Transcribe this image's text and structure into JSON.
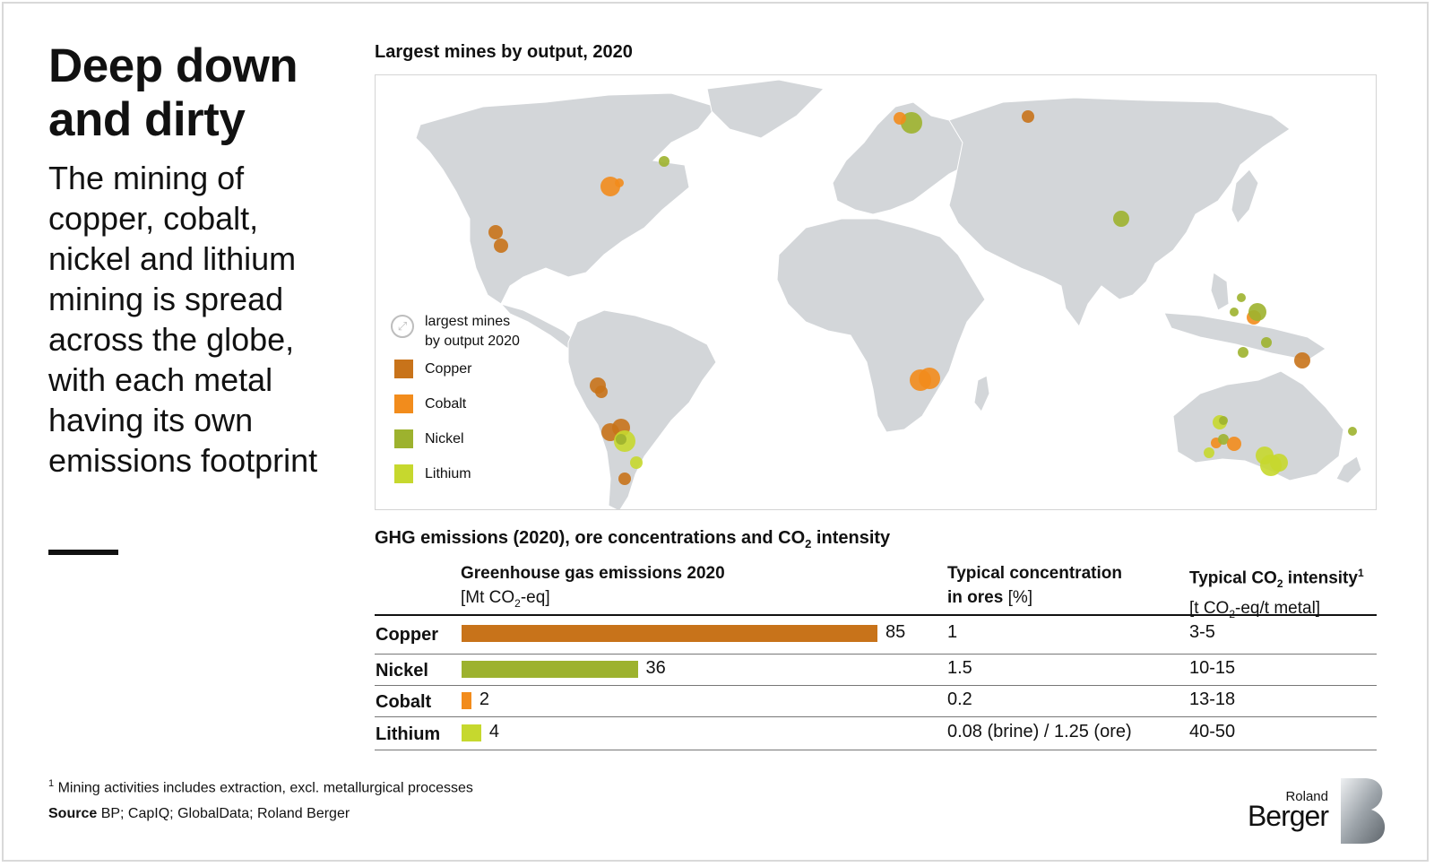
{
  "headline": "Deep down and dirty",
  "subhead": "The mining of copper, cobalt, nickel and lithium mining is spread across the globe, with each metal having its own emissions footprint",
  "colors": {
    "copper": "#c8731a",
    "cobalt": "#f28c1c",
    "nickel": "#9db22e",
    "lithium": "#c6d82e",
    "land": "#d3d6d9"
  },
  "map": {
    "title": "Largest mines by output, 2020",
    "legend": {
      "size_label_line1": "largest mines",
      "size_label_line2": "by output 2020",
      "items": [
        {
          "label": "Copper",
          "color": "#c8731a"
        },
        {
          "label": "Cobalt",
          "color": "#f28c1c"
        },
        {
          "label": "Nickel",
          "color": "#9db22e"
        },
        {
          "label": "Lithium",
          "color": "#c6d82e"
        }
      ]
    }
  },
  "table": {
    "title_pre": "GHG emissions (2020), ore concentrations and CO",
    "title_sub": "2",
    "title_post": " intensity",
    "col1": {
      "title": "Greenhouse gas emissions 2020",
      "unit_pre": "[Mt CO",
      "unit_sub": "2",
      "unit_post": "-eq]"
    },
    "col2": {
      "title_line1": "Typical concentration",
      "title_line2": "in ores",
      "unit": " [%]"
    },
    "col3": {
      "title_pre": "Typical CO",
      "title_sub": "2",
      "title_post": " intensity",
      "title_sup": "1",
      "unit_pre": "[t CO",
      "unit_sub": "2",
      "unit_post": "-eq/t metal]"
    },
    "rows": [
      {
        "metal": "Copper",
        "value_label": "85",
        "concentration": "1",
        "intensity": "3-5"
      },
      {
        "metal": "Nickel",
        "value_label": "36",
        "concentration": "1.5",
        "intensity": "10-15"
      },
      {
        "metal": "Cobalt",
        "value_label": "2",
        "concentration": "0.2",
        "intensity": "13-18"
      },
      {
        "metal": "Lithium",
        "value_label": "4",
        "concentration": "0.08 (brine) / 1.25 (ore)",
        "intensity": "40-50"
      }
    ]
  },
  "chart_data": {
    "type": "bar",
    "title": "GHG emissions (2020), ore concentrations and CO2 intensity",
    "ylabel": "Greenhouse gas emissions 2020 [Mt CO2-eq]",
    "categories": [
      "Copper",
      "Nickel",
      "Cobalt",
      "Lithium"
    ],
    "values": [
      85,
      36,
      2,
      4
    ],
    "colors": [
      "#c8731a",
      "#9db22e",
      "#f28c1c",
      "#c6d82e"
    ]
  },
  "footnote_sup": "1",
  "footnote": " Mining activities includes extraction, excl. metallurgical processes",
  "source_label": "Source",
  "source_text": " BP; CapIQ; GlobalData; Roland Berger",
  "logo": {
    "line1": "Roland",
    "line2": "Berger"
  }
}
